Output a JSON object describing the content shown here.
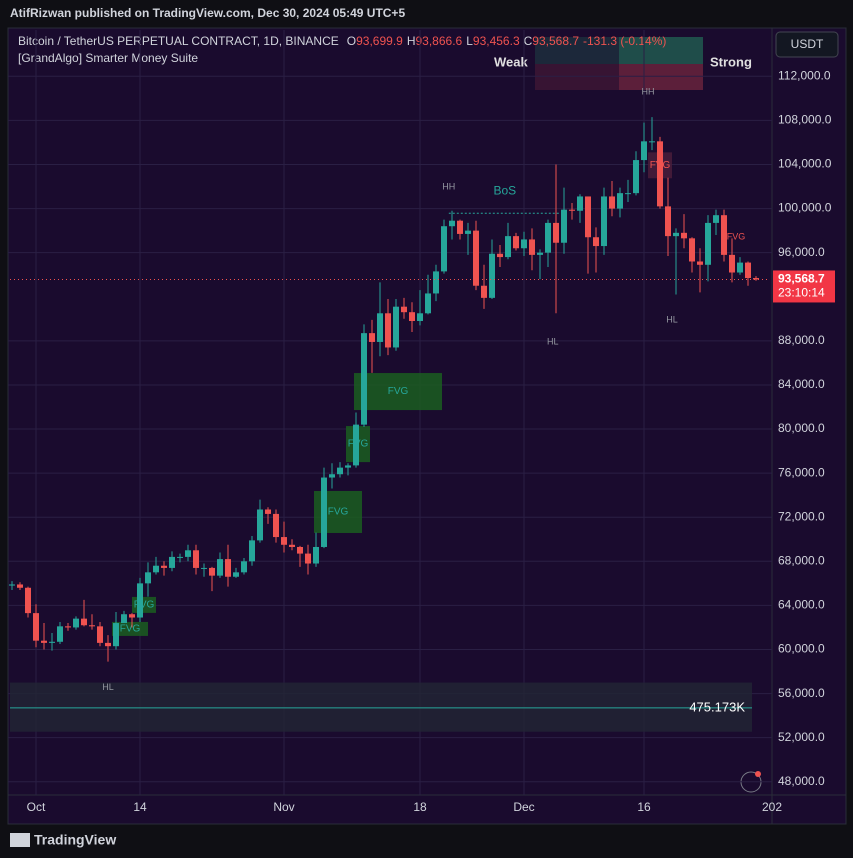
{
  "header": {
    "publisher": "AtifRizwan published on TradingView.com, Dec 30, 2024 05:49 UTC+5",
    "symbol": "Bitcoin / TetherUS PERPETUAL CONTRACT, 1D, BINANCE",
    "ohlc": [
      {
        "key": "O",
        "value": "93,699.9"
      },
      {
        "key": "H",
        "value": "93,866.6"
      },
      {
        "key": "L",
        "value": "93,456.3"
      },
      {
        "key": "C",
        "value": "93,568.7"
      }
    ],
    "change": "-131.3 (-0.14%)",
    "indicator": "[GrandAlgo] Smarter Money Suite",
    "weak": "Weak",
    "strong": "Strong",
    "currency": "USDT",
    "footer": "TradingView"
  },
  "chart_data": {
    "type": "candlestick",
    "up_color": "#26a69a",
    "down_color": "#ef5350",
    "grid": true,
    "xlim": [
      -3.25,
      91.75
    ],
    "ylim": [
      46800,
      116200
    ],
    "xticks": [
      {
        "value": 0,
        "label": "Oct"
      },
      {
        "value": 13,
        "label": "14"
      },
      {
        "value": 31,
        "label": "Nov"
      },
      {
        "value": 48,
        "label": "18"
      },
      {
        "value": 61,
        "label": "Dec"
      },
      {
        "value": 76,
        "label": "16"
      },
      {
        "value": 92,
        "label": "202"
      }
    ],
    "yticks": [
      {
        "value": 48000,
        "label": "48,000.0"
      },
      {
        "value": 52000,
        "label": "52,000.0"
      },
      {
        "value": 56000,
        "label": "56,000.0"
      },
      {
        "value": 60000,
        "label": "60,000.0"
      },
      {
        "value": 64000,
        "label": "64,000.0"
      },
      {
        "value": 68000,
        "label": "68,000.0"
      },
      {
        "value": 72000,
        "label": "72,000.0"
      },
      {
        "value": 76000,
        "label": "76,000.0"
      },
      {
        "value": 80000,
        "label": "80,000.0"
      },
      {
        "value": 84000,
        "label": "84,000.0"
      },
      {
        "value": 88000,
        "label": "88,000.0"
      },
      {
        "value": 96000,
        "label": "96,000.0"
      },
      {
        "value": 100000,
        "label": "100,000.0"
      },
      {
        "value": 104000,
        "label": "104,000.0"
      },
      {
        "value": 108000,
        "label": "108,000.0"
      },
      {
        "value": 112000,
        "label": "112,000.0"
      }
    ],
    "x": [
      -3,
      -2,
      -1,
      0,
      1,
      2,
      3,
      4,
      5,
      6,
      7,
      8,
      9,
      10,
      11,
      12,
      13,
      14,
      15,
      16,
      17,
      18,
      19,
      20,
      21,
      22,
      23,
      24,
      25,
      26,
      27,
      28,
      29,
      30,
      31,
      32,
      33,
      34,
      35,
      36,
      37,
      38,
      39,
      40,
      41,
      42,
      43,
      44,
      45,
      46,
      47,
      48,
      49,
      50,
      51,
      52,
      53,
      54,
      55,
      56,
      57,
      58,
      59,
      60,
      61,
      62,
      63,
      64,
      65,
      66,
      67,
      68,
      69,
      70,
      71,
      72,
      73,
      74,
      75,
      76,
      77,
      78,
      79,
      80,
      81,
      82,
      83,
      84,
      85,
      86,
      87,
      88,
      89,
      90
    ],
    "open": [
      65800,
      65900,
      65600,
      63300,
      60800,
      60600,
      60700,
      62100,
      62000,
      62800,
      62200,
      62100,
      60600,
      60300,
      62400,
      63200,
      62900,
      66000,
      67000,
      67600,
      67400,
      68400,
      68400,
      69000,
      67400,
      67400,
      66700,
      68200,
      66600,
      67000,
      68000,
      69900,
      72700,
      72300,
      70200,
      69500,
      69300,
      68700,
      67800,
      69300,
      75600,
      75900,
      76500,
      76700,
      80400,
      88700,
      87900,
      90500,
      87400,
      91100,
      90600,
      89800,
      90500,
      92300,
      94300,
      98400,
      98900,
      97700,
      98000,
      93000,
      91900,
      95900,
      95600,
      97500,
      96400,
      97200,
      95800,
      96000,
      98700,
      96900,
      99900,
      99800,
      101100,
      97400,
      96600,
      101100,
      100000,
      101400,
      101400,
      104400,
      106100,
      106100,
      100200,
      97500,
      97800,
      97300,
      95200,
      94900,
      98700,
      99400,
      95800,
      94200,
      95100,
      93699.9
    ],
    "high": [
      66200,
      66100,
      65700,
      64100,
      62400,
      61500,
      62500,
      62400,
      63000,
      64500,
      63200,
      62500,
      61300,
      63400,
      63500,
      63300,
      66500,
      67900,
      68400,
      68000,
      68900,
      68700,
      69500,
      69500,
      67800,
      67500,
      68800,
      69500,
      67400,
      68300,
      70300,
      73600,
      72900,
      72700,
      71600,
      70000,
      69400,
      69500,
      70600,
      76500,
      76900,
      77000,
      76900,
      81500,
      89500,
      89900,
      93300,
      91800,
      91800,
      91900,
      91500,
      92600,
      94000,
      94900,
      99000,
      99800,
      99000,
      98700,
      98900,
      94900,
      97200,
      96700,
      98700,
      97800,
      97900,
      98200,
      96300,
      99000,
      104000,
      101900,
      100500,
      101300,
      101100,
      98300,
      101900,
      102500,
      101900,
      102600,
      105200,
      107800,
      108300,
      106500,
      102800,
      98200,
      99500,
      97400,
      96400,
      99400,
      99900,
      99900,
      97300,
      95600,
      95200,
      93866.6
    ],
    "low": [
      65400,
      65400,
      62900,
      60200,
      60000,
      59900,
      60500,
      61700,
      61800,
      62100,
      61800,
      60300,
      58900,
      60000,
      62400,
      62000,
      62500,
      64800,
      66800,
      66700,
      67100,
      67900,
      68000,
      66800,
      66600,
      65300,
      66500,
      65700,
      66500,
      66800,
      67600,
      69700,
      71400,
      69700,
      68800,
      69000,
      67500,
      66800,
      67500,
      69200,
      74600,
      75600,
      75800,
      76500,
      80200,
      85100,
      86600,
      86700,
      87100,
      90000,
      88800,
      89400,
      90400,
      91600,
      94100,
      97200,
      97200,
      95800,
      92600,
      90900,
      91800,
      94700,
      95400,
      96200,
      95700,
      94400,
      93600,
      94700,
      90500,
      95900,
      99000,
      98700,
      94100,
      94200,
      95800,
      99300,
      99200,
      100600,
      101200,
      103300,
      105300,
      100000,
      95700,
      92200,
      96400,
      94200,
      92400,
      93400,
      97600,
      95200,
      93300,
      94000,
      93000,
      93456.3
    ],
    "close": [
      65900,
      65600,
      63300,
      60800,
      60600,
      60700,
      62100,
      62000,
      62800,
      62200,
      62100,
      60600,
      60300,
      62400,
      63200,
      62900,
      66000,
      67000,
      67600,
      67400,
      68400,
      68400,
      69000,
      67400,
      67400,
      66700,
      68200,
      66600,
      67000,
      68000,
      69900,
      72700,
      72300,
      70200,
      69500,
      69300,
      68700,
      67800,
      69300,
      75600,
      75900,
      76500,
      76700,
      80400,
      88700,
      87900,
      90500,
      87400,
      91100,
      90600,
      89800,
      90500,
      92300,
      94300,
      98400,
      98900,
      97700,
      98000,
      93000,
      91900,
      95900,
      95600,
      97500,
      96400,
      97200,
      95800,
      96000,
      98700,
      96900,
      99900,
      99800,
      101100,
      97400,
      96600,
      101100,
      100000,
      101400,
      101400,
      104400,
      106100,
      106100,
      100200,
      97500,
      97800,
      97300,
      95200,
      94900,
      98700,
      99400,
      95800,
      94200,
      95100,
      93700,
      93568.7
    ],
    "last_price": {
      "value": 93568.7,
      "label": "93,568.7"
    },
    "countdown": "23:10:14",
    "zones": [
      {
        "text": "FVG",
        "color": "#1b5e20",
        "x": [
          39.75,
          50.75
        ],
        "y": [
          81720,
          85080
        ]
      },
      {
        "text": "FVG",
        "color": "#1b5e20",
        "x": [
          38.75,
          41.75
        ],
        "y": [
          77000,
          80270
        ]
      },
      {
        "text": "FVG",
        "color": "#1b5e20",
        "x": [
          34.75,
          40.75
        ],
        "y": [
          70570,
          74380
        ]
      },
      {
        "text": "FVG",
        "color": "#1b5e20",
        "x": [
          12,
          15
        ],
        "y": [
          63320,
          64770
        ]
      },
      {
        "text": "FVG",
        "color": "#1b5e20",
        "x": [
          9.5,
          14
        ],
        "y": [
          61230,
          62500
        ]
      },
      {
        "text": "FVG",
        "color": "#4a1d3a",
        "x": [
          76.5,
          79.5
        ],
        "y": [
          102750,
          105100
        ]
      }
    ],
    "labels": [
      {
        "text": "HH",
        "x": 51.6,
        "y": 101940,
        "color": "#9598a1"
      },
      {
        "text": "BoS",
        "x": 58.6,
        "y": 101580,
        "color": "#26a69a"
      },
      {
        "text": "HH",
        "x": 76.5,
        "y": 110550,
        "color": "#9598a1"
      },
      {
        "text": "HL",
        "x": 64.6,
        "y": 87890,
        "color": "#9598a1"
      },
      {
        "text": "HL",
        "x": 79.5,
        "y": 89880,
        "color": "#9598a1"
      },
      {
        "text": "HL",
        "x": 9,
        "y": 56520,
        "color": "#9598a1"
      },
      {
        "text": "FVG",
        "x": 87.5,
        "y": 97400,
        "color": "#ef5350"
      }
    ],
    "bos_line": {
      "x": [
        51.6,
        65.5
      ],
      "y": 99580
    },
    "band": {
      "y": [
        52540,
        57000
      ],
      "level": 54700,
      "text": "475.173K"
    }
  }
}
